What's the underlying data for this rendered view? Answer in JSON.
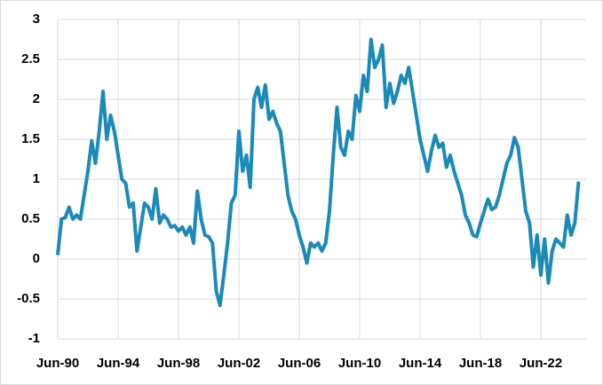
{
  "chart_data": {
    "type": "line",
    "x": [
      1990.5,
      1990.75,
      1991,
      1991.25,
      1991.5,
      1991.75,
      1992,
      1992.25,
      1992.5,
      1992.75,
      1993,
      1993.25,
      1993.5,
      1993.75,
      1994,
      1994.25,
      1994.5,
      1994.75,
      1995,
      1995.25,
      1995.5,
      1995.75,
      1996,
      1996.25,
      1996.5,
      1996.75,
      1997,
      1997.25,
      1997.5,
      1997.75,
      1998,
      1998.25,
      1998.5,
      1998.75,
      1999,
      1999.25,
      1999.5,
      1999.75,
      2000,
      2000.25,
      2000.5,
      2000.75,
      2001,
      2001.25,
      2001.5,
      2001.75,
      2002,
      2002.25,
      2002.5,
      2002.75,
      2003,
      2003.25,
      2003.5,
      2003.75,
      2004,
      2004.25,
      2004.5,
      2004.75,
      2005,
      2005.25,
      2005.5,
      2005.75,
      2006,
      2006.25,
      2006.5,
      2006.75,
      2007,
      2007.25,
      2007.5,
      2007.75,
      2008,
      2008.25,
      2008.5,
      2008.75,
      2009,
      2009.25,
      2009.5,
      2009.75,
      2010,
      2010.25,
      2010.5,
      2010.75,
      2011,
      2011.25,
      2011.5,
      2011.75,
      2012,
      2012.25,
      2012.5,
      2012.75,
      2013,
      2013.25,
      2013.5,
      2013.75,
      2014,
      2014.25,
      2014.5,
      2014.75,
      2015,
      2015.25,
      2015.5,
      2015.75,
      2016,
      2016.25,
      2016.5,
      2016.75,
      2017,
      2017.25,
      2017.5,
      2017.75,
      2018,
      2018.25,
      2018.5,
      2018.75,
      2019,
      2019.25,
      2019.5,
      2019.75,
      2020,
      2020.25,
      2020.5,
      2020.75,
      2021,
      2021.25,
      2021.5,
      2021.75,
      2022,
      2022.25,
      2022.5,
      2022.75,
      2023,
      2023.25,
      2023.5,
      2023.75,
      2024,
      2024.25,
      2024.5,
      2024.75,
      2025
    ],
    "series": [
      {
        "color": "#1a8ab8",
        "values": [
          0.05,
          0.5,
          0.52,
          0.65,
          0.5,
          0.55,
          0.5,
          0.8,
          1.1,
          1.48,
          1.2,
          1.6,
          2.1,
          1.5,
          1.8,
          1.6,
          1.3,
          1.0,
          0.95,
          0.65,
          0.7,
          0.1,
          0.4,
          0.7,
          0.65,
          0.5,
          0.88,
          0.45,
          0.55,
          0.5,
          0.4,
          0.42,
          0.35,
          0.4,
          0.3,
          0.4,
          0.2,
          0.85,
          0.5,
          0.3,
          0.28,
          0.2,
          -0.4,
          -0.58,
          -0.2,
          0.2,
          0.7,
          0.8,
          1.6,
          1.1,
          1.3,
          0.9,
          2.0,
          2.15,
          1.9,
          2.18,
          1.75,
          1.85,
          1.7,
          1.6,
          1.2,
          0.8,
          0.6,
          0.5,
          0.3,
          0.15,
          -0.05,
          0.2,
          0.15,
          0.2,
          0.1,
          0.2,
          0.6,
          1.3,
          1.9,
          1.4,
          1.3,
          1.6,
          1.5,
          2.05,
          1.85,
          2.3,
          2.1,
          2.75,
          2.4,
          2.5,
          2.68,
          1.9,
          2.2,
          1.95,
          2.1,
          2.3,
          2.2,
          2.4,
          2.1,
          1.8,
          1.5,
          1.3,
          1.1,
          1.35,
          1.55,
          1.4,
          1.45,
          1.15,
          1.3,
          1.1,
          0.95,
          0.8,
          0.55,
          0.45,
          0.3,
          0.28,
          0.45,
          0.6,
          0.75,
          0.62,
          0.65,
          0.8,
          1.0,
          1.2,
          1.3,
          1.52,
          1.4,
          1.0,
          0.6,
          0.45,
          -0.1,
          0.3,
          -0.2,
          0.25,
          -0.3,
          0.1,
          0.25,
          0.2,
          0.15,
          0.55,
          0.3,
          0.45,
          0.97
        ]
      }
    ],
    "xlim": [
      1990.5,
      2025.5
    ],
    "xticks": [
      {
        "value": 1990.5,
        "label": "Jun-90"
      },
      {
        "value": 1994.5,
        "label": "Jun-94"
      },
      {
        "value": 1998.5,
        "label": "Jun-98"
      },
      {
        "value": 2002.5,
        "label": "Jun-02"
      },
      {
        "value": 2006.5,
        "label": "Jun-06"
      },
      {
        "value": 2010.5,
        "label": "Jun-10"
      },
      {
        "value": 2014.5,
        "label": "Jun-14"
      },
      {
        "value": 2018.5,
        "label": "Jun-18"
      },
      {
        "value": 2022.5,
        "label": "Jun-22"
      }
    ],
    "ylim": [
      -1,
      3
    ],
    "yticks": [
      -1,
      -0.5,
      0,
      0.5,
      1,
      1.5,
      2,
      2.5,
      3
    ],
    "grid": true
  }
}
